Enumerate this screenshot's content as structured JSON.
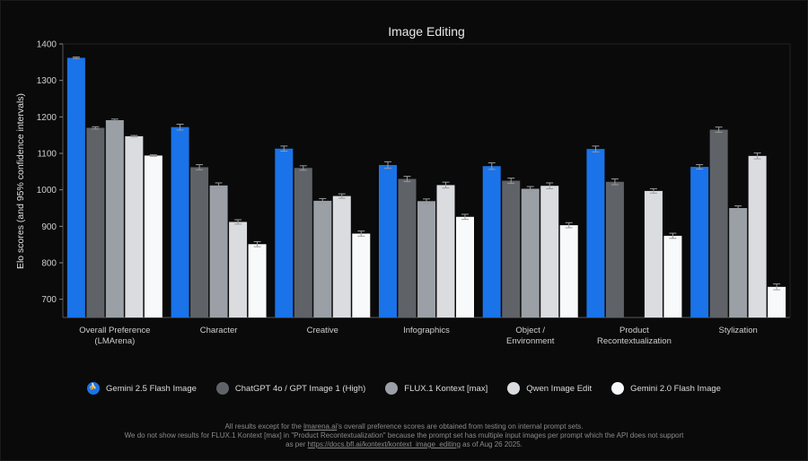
{
  "chart_data": {
    "type": "bar",
    "title": "Image Editing",
    "ylabel": "Elo scores (and 95% confidence intervals)",
    "xlabel": "",
    "ylim": [
      650,
      1400
    ],
    "yticks": [
      700,
      800,
      900,
      1000,
      1100,
      1200,
      1300,
      1400
    ],
    "categories": [
      "Overall Preference\n(LMArena)",
      "Character",
      "Creative",
      "Infographics",
      "Object /\nEnvironment",
      "Product\nRecontextualization",
      "Stylization"
    ],
    "series": [
      {
        "name": "Gemini 2.5 Flash Image",
        "color": "#1a73e8",
        "values": [
          1362,
          1172,
          1113,
          1068,
          1065,
          1112,
          1063
        ],
        "errors": [
          2,
          8,
          7,
          9,
          9,
          8,
          6
        ]
      },
      {
        "name": "ChatGPT 4o / GPT Image 1 (High)",
        "color": "#5f6368",
        "values": [
          1170,
          1062,
          1060,
          1030,
          1025,
          1022,
          1165
        ],
        "errors": [
          3,
          7,
          6,
          7,
          7,
          8,
          7
        ]
      },
      {
        "name": "FLUX.1 Kontext [max]",
        "color": "#9aa0a6",
        "values": [
          1191,
          1012,
          970,
          969,
          1003,
          null,
          950
        ],
        "errors": [
          3,
          7,
          6,
          6,
          6,
          null,
          6
        ]
      },
      {
        "name": "Qwen Image Edit",
        "color": "#dadce0",
        "values": [
          1147,
          912,
          983,
          1013,
          1011,
          997,
          1093
        ],
        "errors": [
          2,
          6,
          6,
          8,
          8,
          6,
          8
        ]
      },
      {
        "name": "Gemini 2.0 Flash Image",
        "color": "#f8f9fa",
        "values": [
          1094,
          851,
          880,
          926,
          903,
          874,
          734
        ],
        "errors": [
          2,
          7,
          7,
          7,
          7,
          7,
          8
        ]
      }
    ],
    "grid": false,
    "legend_position": "bottom"
  },
  "footnote": {
    "line1_pre": "All results except for the ",
    "line1_link": "lmarena.ai",
    "line1_post": "'s overall preference scores are obtained from testing on internal prompt sets.",
    "line2": "We do not show results for FLUX.1 Kontext [max] in \"Product Recontextualization\" because the prompt set has multiple input images per prompt which the API does not support",
    "line3_pre": "as per ",
    "line3_link": "https://docs.bfl.ai/kontext/kontext_image_editing",
    "line3_post": " as of Aug 26 2025."
  }
}
